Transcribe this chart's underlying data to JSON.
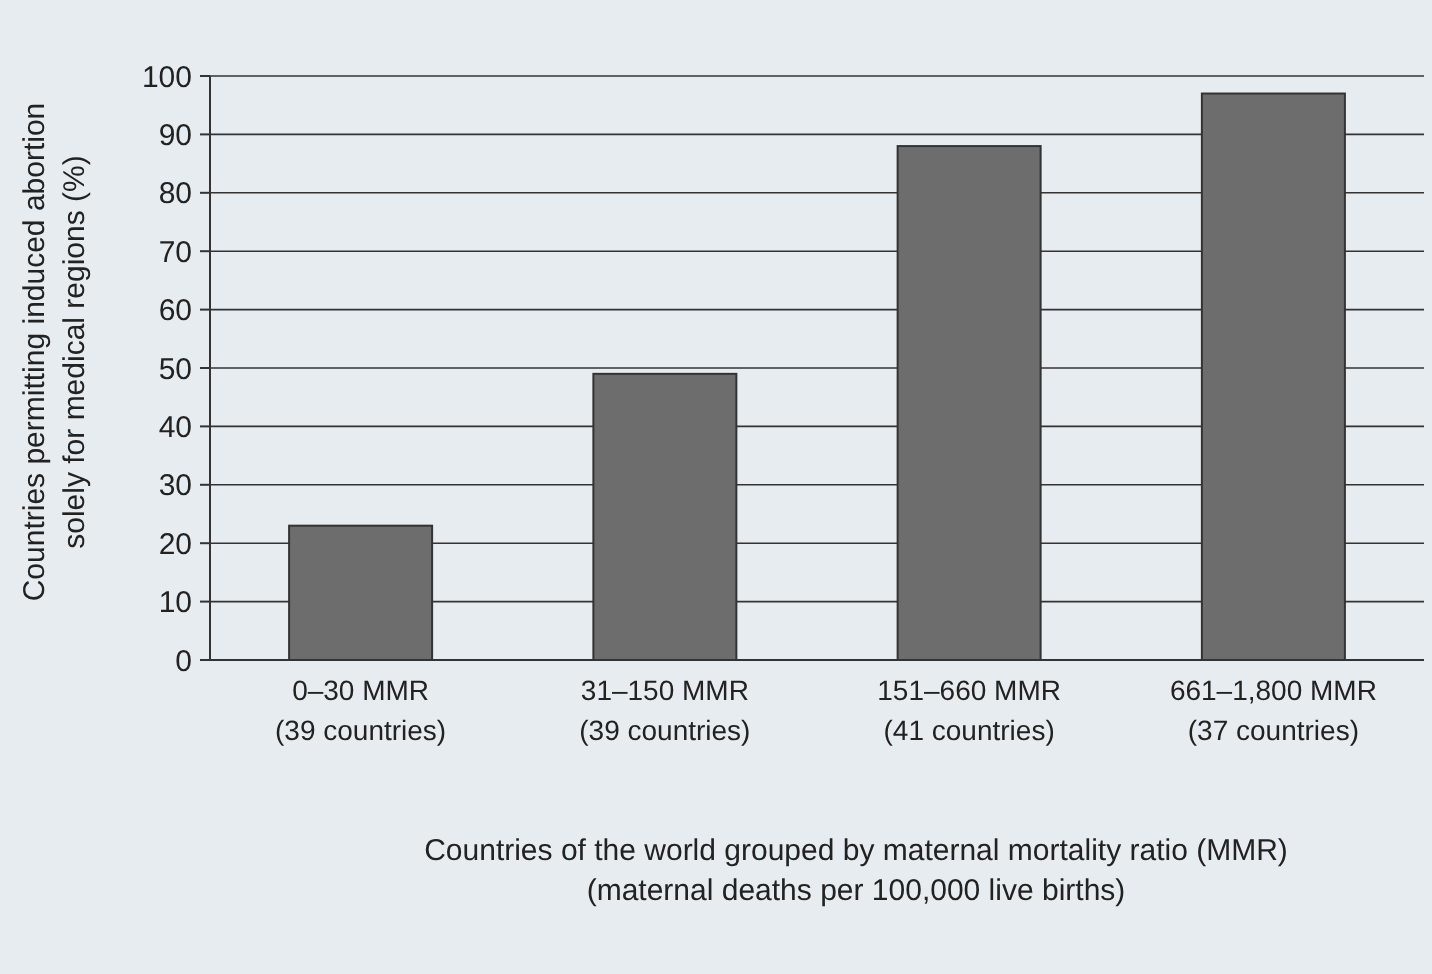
{
  "chart_data": {
    "type": "bar",
    "categories": [
      "0–30 MMR\n(39 countries)",
      "31–150 MMR\n(39 countries)",
      "151–660 MMR\n(41 countries)",
      "661–1,800 MMR\n(37 countries)"
    ],
    "values": [
      23,
      49,
      88,
      97
    ],
    "color": "#6d6d6d",
    "ylim": [
      0,
      100
    ],
    "yticks": [
      0,
      10,
      20,
      30,
      40,
      50,
      60,
      70,
      80,
      90,
      100
    ],
    "grid": "y",
    "ylabel": "Countries permitting induced abortion\nsolely for medical regions (%)",
    "xlabel": "Countries of the world grouped by maternal mortality ratio (MMR)\n(maternal deaths per 100,000 live births)"
  }
}
